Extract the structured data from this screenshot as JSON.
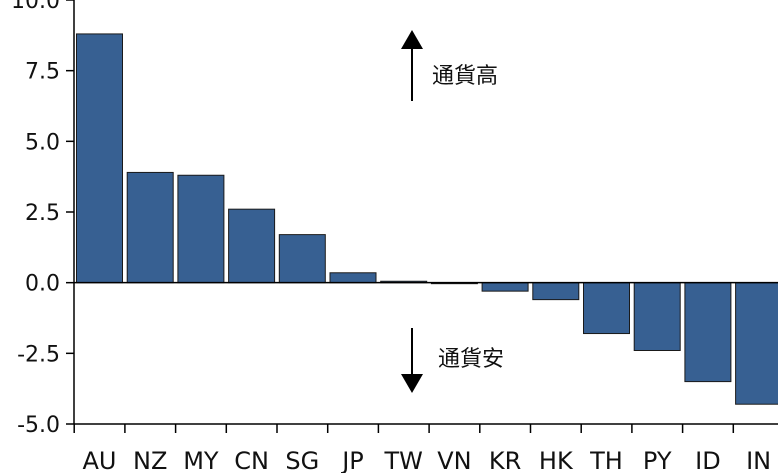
{
  "chart_data": {
    "type": "bar",
    "categories": [
      "AU",
      "NZ",
      "MY",
      "CN",
      "SG",
      "JP",
      "TW",
      "VN",
      "KR",
      "HK",
      "TH",
      "PY",
      "ID",
      "IN"
    ],
    "values": [
      8.8,
      3.9,
      3.8,
      2.6,
      1.7,
      0.35,
      0.05,
      -0.03,
      -0.3,
      -0.6,
      -1.8,
      -2.4,
      -3.5,
      -4.3
    ],
    "yticks": [
      "10.0",
      "7.5",
      "5.0",
      "2.5",
      "0.0",
      "-2.5",
      "-5.0"
    ],
    "ylim": [
      -5.0,
      10.0
    ],
    "bar_color": "#376092",
    "annotations": {
      "up": "通貨高",
      "down": "通貨安"
    },
    "title": "",
    "xlabel": "",
    "ylabel": ""
  }
}
